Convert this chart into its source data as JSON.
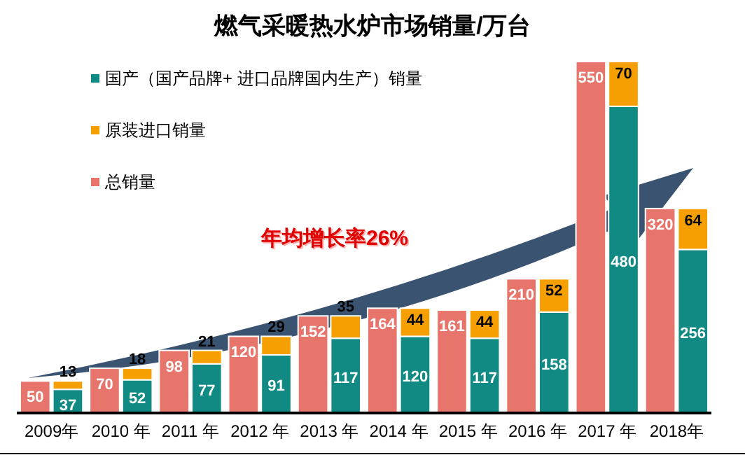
{
  "chart_data": [
    {
      "type": "bar",
      "title": "燃气采暖热水炉市场销量/万台",
      "categories": [
        "2009年",
        "2010 年",
        "2011 年",
        "2012 年",
        "2013 年",
        "2014 年",
        "2015 年",
        "2016 年",
        "2017 年",
        "2018年"
      ],
      "series": [
        {
          "name": "总销量",
          "color": "#e8756b",
          "values": [
            50,
            70,
            98,
            120,
            152,
            164,
            161,
            210,
            550,
            320
          ]
        }
      ],
      "data_labels": true,
      "legend": "top left",
      "annotations": [
        "年均增长率26%"
      ]
    },
    {
      "type": "bar",
      "stacked": true,
      "categories": [
        null,
        null,
        null,
        null,
        null,
        null,
        null,
        null,
        null,
        null
      ],
      "series": [
        {
          "name": "国产（国产品牌+ 进口品牌国内生产）销量",
          "color": "#128a84",
          "values": [
            37,
            52,
            77,
            91,
            117,
            120,
            117,
            158,
            480,
            256
          ]
        },
        {
          "name": "原装进口销量",
          "color": "#f5a000",
          "values": [
            13,
            18,
            21,
            29,
            35,
            44,
            44,
            52,
            70,
            64
          ]
        }
      ],
      "data_labels": true,
      "legend": "top left"
    }
  ]
}
